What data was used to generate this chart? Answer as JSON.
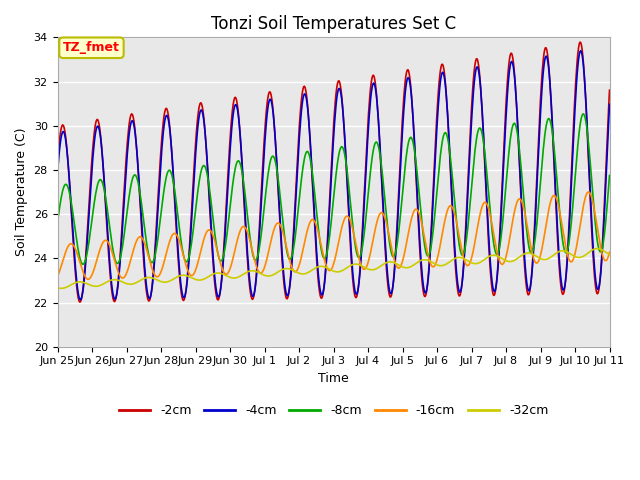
{
  "title": "Tonzi Soil Temperatures Set C",
  "xlabel": "Time",
  "ylabel": "Soil Temperature (C)",
  "ylim": [
    20,
    34
  ],
  "series_labels": [
    "-2cm",
    "-4cm",
    "-8cm",
    "-16cm",
    "-32cm"
  ],
  "series_colors": [
    "#cc0000",
    "#0000cc",
    "#00aa00",
    "#ff8800",
    "#cccc00"
  ],
  "xtick_labels": [
    "Jun 25",
    "Jun 26",
    "Jun 27",
    "Jun 28",
    "Jun 29",
    "Jun 30",
    "Jul 1",
    "Jul 2",
    "Jul 3",
    "Jul 4",
    "Jul 5",
    "Jul 6",
    "Jul 7",
    "Jul 8",
    "Jul 9",
    "Jul 10",
    "Jul 11"
  ],
  "background_color": "#ffffff",
  "plot_bg_color": "#e8e8e8",
  "grid_color": "#ffffff",
  "annotation_text": "TZ_fmet",
  "annotation_bg": "#ffffcc",
  "annotation_border": "#bbbb00",
  "title_fontsize": 12,
  "axis_fontsize": 9,
  "tick_fontsize": 8,
  "legend_fontsize": 9
}
